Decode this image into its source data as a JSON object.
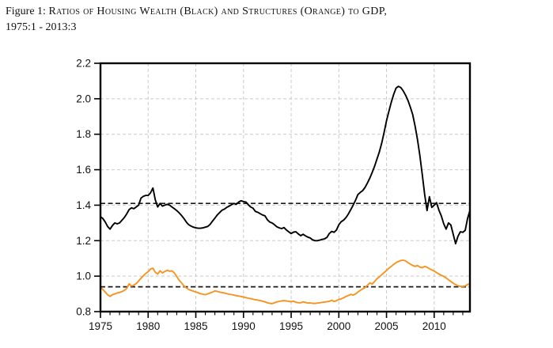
{
  "figure": {
    "caption_prefix": "Figure 1:",
    "caption_smallcaps": "Ratios of Housing Wealth (Black) and Structures (Orange) to GDP,",
    "caption_line2": "1975:1 - 2013:3"
  },
  "chart_data": {
    "type": "line",
    "title": "Ratios of Housing Wealth (Black) and Structures (Orange) to GDP, 1975:1 - 2013:3",
    "xlabel": "",
    "ylabel": "",
    "xlim": [
      1975,
      2013.75
    ],
    "ylim": [
      0.8,
      2.2
    ],
    "x_axis": {
      "major_ticks": [
        1975,
        1980,
        1985,
        1990,
        1995,
        2000,
        2005,
        2010
      ],
      "labels": [
        "1975",
        "1980",
        "1985",
        "1990",
        "1995",
        "2000",
        "2005",
        "2010"
      ],
      "minor_tick_step": 1
    },
    "y_axis": {
      "ticks": [
        0.8,
        1.0,
        1.2,
        1.4,
        1.6,
        1.8,
        2.0,
        2.2
      ],
      "labels": [
        "0.8",
        "1.0",
        "1.2",
        "1.4",
        "1.6",
        "1.8",
        "2.0",
        "2.2"
      ]
    },
    "grid": {
      "x_lines": [
        1980,
        1985,
        1990,
        1995,
        2000,
        2005,
        2010
      ],
      "y_lines": [
        1.0,
        1.2,
        1.4,
        1.6,
        1.8,
        2.0
      ],
      "color": "#c9c9c9",
      "style": "dashed"
    },
    "mean_lines": [
      {
        "name": "housing-wealth-mean",
        "value": 1.41,
        "color": "#1a1a1a",
        "style": "dashed"
      },
      {
        "name": "structures-mean",
        "value": 0.94,
        "color": "#1a1a1a",
        "style": "dashed"
      }
    ],
    "series": [
      {
        "name": "Housing wealth to GDP",
        "color": "#000000",
        "x_start": 1975,
        "x_step": 0.25,
        "values": [
          1.335,
          1.325,
          1.305,
          1.28,
          1.265,
          1.285,
          1.3,
          1.295,
          1.3,
          1.315,
          1.33,
          1.35,
          1.375,
          1.385,
          1.38,
          1.39,
          1.4,
          1.44,
          1.45,
          1.455,
          1.455,
          1.47,
          1.497,
          1.43,
          1.39,
          1.41,
          1.395,
          1.4,
          1.405,
          1.4,
          1.39,
          1.38,
          1.37,
          1.357,
          1.342,
          1.325,
          1.305,
          1.29,
          1.282,
          1.276,
          1.272,
          1.27,
          1.27,
          1.272,
          1.276,
          1.28,
          1.292,
          1.31,
          1.327,
          1.345,
          1.358,
          1.372,
          1.378,
          1.388,
          1.395,
          1.403,
          1.41,
          1.405,
          1.418,
          1.425,
          1.42,
          1.418,
          1.403,
          1.39,
          1.383,
          1.365,
          1.36,
          1.352,
          1.345,
          1.34,
          1.318,
          1.305,
          1.3,
          1.29,
          1.278,
          1.272,
          1.268,
          1.274,
          1.26,
          1.25,
          1.24,
          1.248,
          1.25,
          1.238,
          1.228,
          1.236,
          1.227,
          1.22,
          1.215,
          1.205,
          1.2,
          1.2,
          1.203,
          1.207,
          1.21,
          1.218,
          1.24,
          1.252,
          1.247,
          1.26,
          1.29,
          1.307,
          1.316,
          1.33,
          1.35,
          1.375,
          1.4,
          1.428,
          1.46,
          1.472,
          1.482,
          1.5,
          1.525,
          1.553,
          1.585,
          1.62,
          1.66,
          1.7,
          1.75,
          1.81,
          1.875,
          1.93,
          1.98,
          2.025,
          2.06,
          2.07,
          2.063,
          2.045,
          2.02,
          1.99,
          1.952,
          1.91,
          1.845,
          1.77,
          1.68,
          1.575,
          1.46,
          1.37,
          1.448,
          1.387,
          1.4,
          1.414,
          1.372,
          1.34,
          1.295,
          1.265,
          1.3,
          1.288,
          1.235,
          1.183,
          1.225,
          1.25,
          1.247,
          1.258,
          1.325,
          1.37
        ]
      },
      {
        "name": "Structures to GDP",
        "color": "#f79420",
        "x_start": 1975,
        "x_step": 0.25,
        "values": [
          0.937,
          0.925,
          0.91,
          0.895,
          0.886,
          0.895,
          0.9,
          0.905,
          0.908,
          0.913,
          0.92,
          0.93,
          0.957,
          0.944,
          0.95,
          0.958,
          0.973,
          0.988,
          1.002,
          1.015,
          1.025,
          1.04,
          1.045,
          1.022,
          1.012,
          1.03,
          1.018,
          1.026,
          1.033,
          1.028,
          1.03,
          1.018,
          0.998,
          0.978,
          0.962,
          0.945,
          0.934,
          0.925,
          0.92,
          0.915,
          0.911,
          0.906,
          0.901,
          0.898,
          0.896,
          0.9,
          0.905,
          0.91,
          0.917,
          0.914,
          0.91,
          0.907,
          0.905,
          0.901,
          0.898,
          0.896,
          0.893,
          0.89,
          0.888,
          0.885,
          0.882,
          0.879,
          0.876,
          0.873,
          0.87,
          0.867,
          0.865,
          0.862,
          0.859,
          0.855,
          0.85,
          0.847,
          0.845,
          0.85,
          0.855,
          0.858,
          0.86,
          0.862,
          0.86,
          0.858,
          0.856,
          0.859,
          0.853,
          0.85,
          0.85,
          0.855,
          0.852,
          0.848,
          0.849,
          0.847,
          0.846,
          0.848,
          0.85,
          0.852,
          0.854,
          0.856,
          0.858,
          0.864,
          0.857,
          0.862,
          0.868,
          0.872,
          0.878,
          0.885,
          0.891,
          0.897,
          0.893,
          0.9,
          0.91,
          0.92,
          0.928,
          0.936,
          0.948,
          0.962,
          0.955,
          0.97,
          0.985,
          0.996,
          1.008,
          1.02,
          1.032,
          1.045,
          1.055,
          1.066,
          1.076,
          1.083,
          1.088,
          1.09,
          1.086,
          1.076,
          1.068,
          1.06,
          1.055,
          1.06,
          1.051,
          1.048,
          1.055,
          1.05,
          1.042,
          1.035,
          1.029,
          1.02,
          1.012,
          1.005,
          0.999,
          0.99,
          0.98,
          0.97,
          0.96,
          0.952,
          0.946,
          0.943,
          0.942,
          0.945,
          0.953,
          0.957
        ]
      }
    ],
    "legend_position": "none (colors identified in caption)",
    "grid_on": true
  }
}
